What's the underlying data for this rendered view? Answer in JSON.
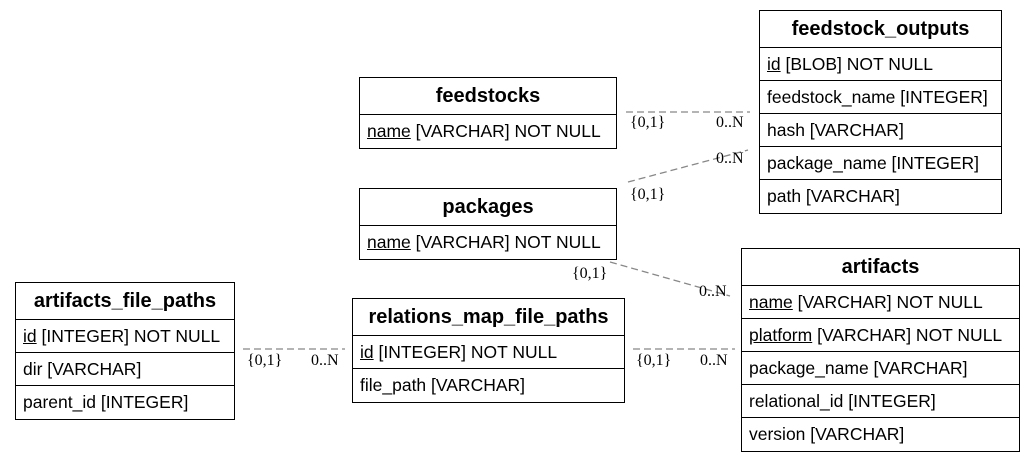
{
  "entities": {
    "feedstocks": {
      "title": "feedstocks",
      "rows": [
        {
          "key": "name",
          "rest": " [VARCHAR] NOT NULL"
        }
      ]
    },
    "packages": {
      "title": "packages",
      "rows": [
        {
          "key": "name",
          "rest": " [VARCHAR] NOT NULL"
        }
      ]
    },
    "feedstock_outputs": {
      "title": "feedstock_outputs",
      "rows": [
        {
          "key": "id",
          "rest": " [BLOB] NOT NULL"
        },
        {
          "key": "",
          "rest": "feedstock_name [INTEGER]"
        },
        {
          "key": "",
          "rest": "hash [VARCHAR]"
        },
        {
          "key": "",
          "rest": "package_name [INTEGER]"
        },
        {
          "key": "",
          "rest": "path [VARCHAR]"
        }
      ]
    },
    "artifacts": {
      "title": "artifacts",
      "rows": [
        {
          "key": "name",
          "rest": " [VARCHAR] NOT NULL"
        },
        {
          "key": "platform",
          "rest": " [VARCHAR] NOT NULL"
        },
        {
          "key": "",
          "rest": "package_name [VARCHAR]"
        },
        {
          "key": "",
          "rest": "relational_id [INTEGER]"
        },
        {
          "key": "",
          "rest": "version [VARCHAR]"
        }
      ]
    },
    "artifacts_file_paths": {
      "title": "artifacts_file_paths",
      "rows": [
        {
          "key": "id",
          "rest": " [INTEGER] NOT NULL"
        },
        {
          "key": "",
          "rest": "dir [VARCHAR]"
        },
        {
          "key": "",
          "rest": "parent_id [INTEGER]"
        }
      ]
    },
    "relations_map_file_paths": {
      "title": "relations_map_file_paths",
      "rows": [
        {
          "key": "id",
          "rest": " [INTEGER] NOT NULL"
        },
        {
          "key": "",
          "rest": "file_path [VARCHAR]"
        }
      ]
    }
  },
  "relationships": [
    {
      "from": "feedstocks",
      "to": "feedstock_outputs",
      "from_card": "{0,1}",
      "to_card": "0..N"
    },
    {
      "from": "packages",
      "to": "feedstock_outputs",
      "from_card": "{0,1}",
      "to_card": "0..N"
    },
    {
      "from": "packages",
      "to": "artifacts",
      "from_card": "{0,1}",
      "to_card": "0..N"
    },
    {
      "from": "artifacts_file_paths",
      "to": "relations_map_file_paths",
      "from_card": "{0,1}",
      "to_card": "0..N"
    },
    {
      "from": "relations_map_file_paths",
      "to": "artifacts",
      "from_card": "{0,1}",
      "to_card": "0..N"
    }
  ],
  "colors": {
    "line": "#888888",
    "border": "#000000"
  }
}
